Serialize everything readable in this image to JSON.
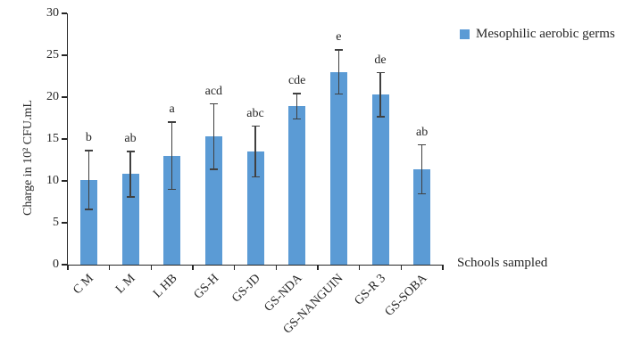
{
  "chart_data": {
    "type": "bar",
    "title": "",
    "ylabel": "Charge in 10² CFU.mL",
    "xlabel": "Schools sampled",
    "ylim": [
      0,
      30
    ],
    "ytick_step": 5,
    "grid": false,
    "legend_position": "right",
    "legend": [
      "Mesophilic aerobic germs"
    ],
    "bar_color": "#5B9BD5",
    "error_bar_color": "#404040",
    "categories": [
      "C M",
      "L M",
      "L HB",
      "GS-H",
      "GS-JD",
      "GS-NDA",
      "GS-NANGUIN",
      "GS-R 3",
      "GS-SOBA"
    ],
    "series": [
      {
        "name": "Mesophilic aerobic germs",
        "values": [
          10.1,
          10.8,
          13.0,
          15.3,
          13.5,
          18.9,
          23.0,
          20.3,
          11.4
        ],
        "errors": [
          3.6,
          2.8,
          4.1,
          4.0,
          3.1,
          1.6,
          2.7,
          2.7,
          3.0
        ],
        "significance_letters": [
          "b",
          "ab",
          "a",
          "acd",
          "abc",
          "cde",
          "e",
          "de",
          "ab"
        ]
      }
    ]
  }
}
